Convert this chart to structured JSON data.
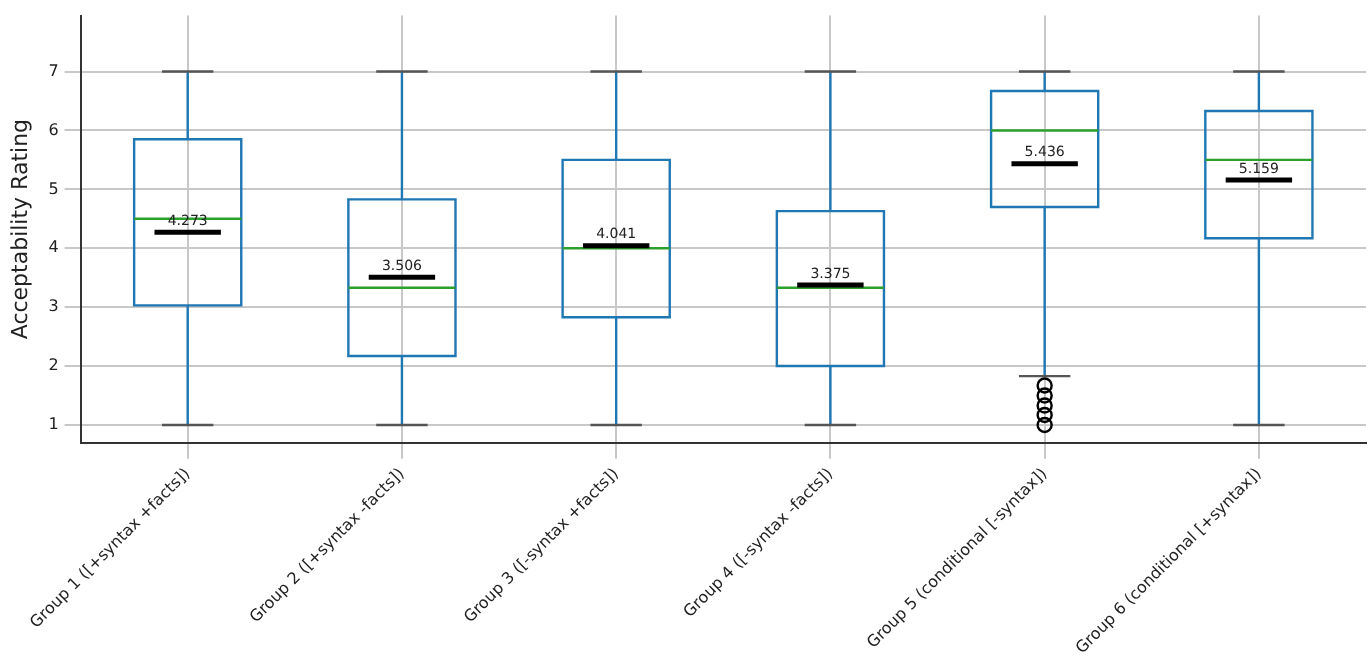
{
  "chart_data": {
    "type": "box",
    "ylabel": "Acceptability Rating",
    "categories": [
      "Group 1 ([+syntax +facts])",
      "Group 2 ([+syntax -facts])",
      "Group 3 ([-syntax +facts])",
      "Group 4 ([-syntax -facts])",
      "Group 5 (conditional [-syntax])",
      "Group 6 (conditional [+syntax])"
    ],
    "series": [
      {
        "color": "#1f77b4",
        "boxes": [
          {
            "low": 1,
            "q1": 3.03,
            "median": 4.5,
            "q3": 5.85,
            "high": 7,
            "mean": 4.273
          },
          {
            "low": 1,
            "q1": 2.17,
            "median": 3.33,
            "q3": 4.83,
            "high": 7,
            "mean": 3.506
          },
          {
            "low": 1,
            "q1": 2.83,
            "median": 4.0,
            "q3": 5.5,
            "high": 7,
            "mean": 4.041
          },
          {
            "low": 1,
            "q1": 2.0,
            "median": 3.33,
            "q3": 4.63,
            "high": 7,
            "mean": 3.375
          },
          {
            "low": 1.83,
            "q1": 4.7,
            "median": 6.0,
            "q3": 6.67,
            "high": 7,
            "mean": 5.436,
            "outliers": [
              1,
              1.17,
              1.33,
              1.5,
              1.67
            ]
          },
          {
            "low": 1,
            "q1": 4.17,
            "median": 5.5,
            "q3": 6.33,
            "high": 7,
            "mean": 5.159
          }
        ]
      }
    ],
    "annotations": [
      {
        "text": "4.273",
        "x": "Group 1 ([+syntax +facts])",
        "y": 4.273
      },
      {
        "text": "3.506",
        "x": "Group 2 ([+syntax -facts])",
        "y": 3.506
      },
      {
        "text": "4.041",
        "x": "Group 3 ([-syntax +facts])",
        "y": 4.041
      },
      {
        "text": "3.375",
        "x": "Group 4 ([-syntax -facts])",
        "y": 3.375
      },
      {
        "text": "5.436",
        "x": "Group 5 (conditional [-syntax])",
        "y": 5.436
      },
      {
        "text": "5.159",
        "x": "Group 6 (conditional [+syntax])",
        "y": 5.159
      }
    ],
    "ylim": [
      0.7,
      7.95
    ],
    "yticks": [
      1,
      2,
      3,
      4,
      5,
      6,
      7
    ],
    "grid": true,
    "legend": false
  }
}
